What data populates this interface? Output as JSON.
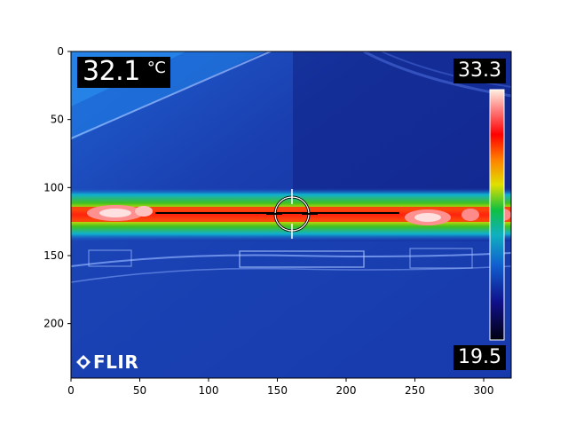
{
  "thermal": {
    "spot_temperature": "32.1",
    "unit": "°C",
    "scale_max": "33.3",
    "scale_min": "19.5",
    "logo": "FLIR",
    "palette": [
      "#000010",
      "#10108a",
      "#1060d0",
      "#10b0c0",
      "#10c040",
      "#e0e000",
      "#ff8000",
      "#ff0000",
      "#ff8080",
      "#fff0e0"
    ]
  },
  "axes": {
    "x_ticks": [
      "0",
      "50",
      "100",
      "150",
      "200",
      "250",
      "300"
    ],
    "y_ticks": [
      "0",
      "50",
      "100",
      "150",
      "200"
    ],
    "x_range": [
      0,
      320
    ],
    "y_range": [
      240,
      0
    ]
  }
}
